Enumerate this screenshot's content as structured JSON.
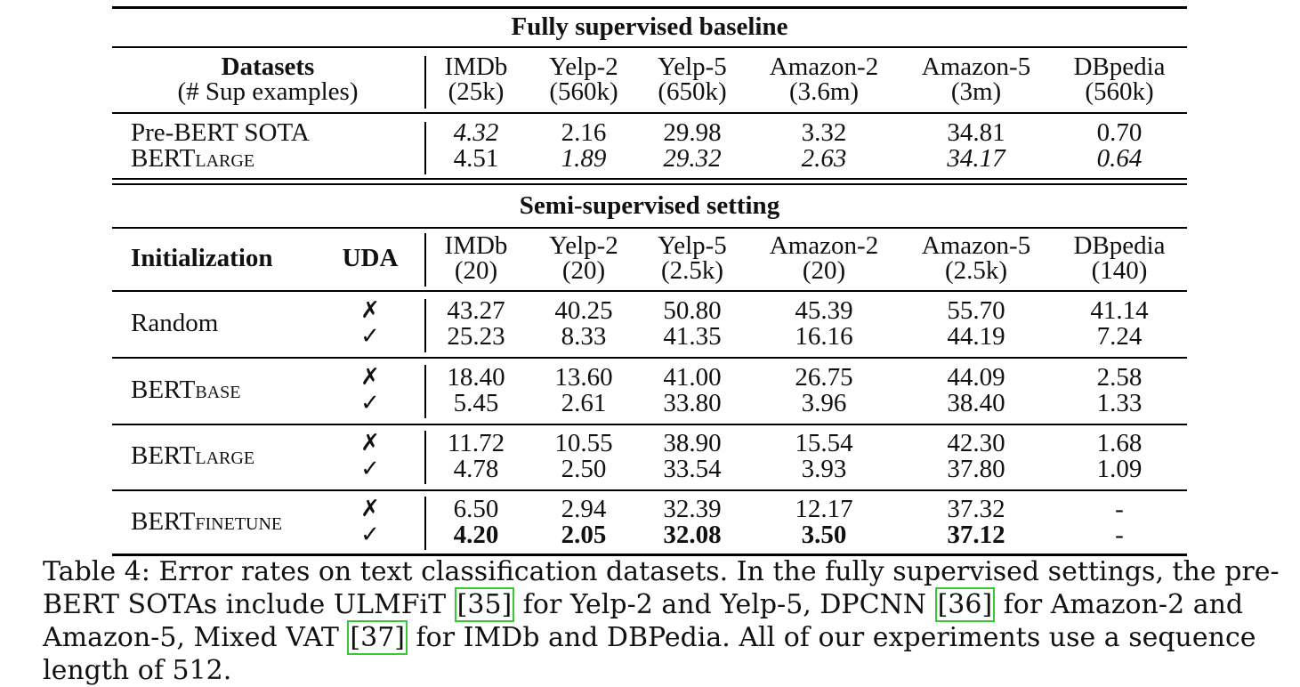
{
  "table": {
    "section1_title": "Fully supervised baseline",
    "datasets_label": "Datasets",
    "sup_examples_label": "(# Sup examples)",
    "full_columns": [
      {
        "name": "IMDb",
        "count": "(25k)"
      },
      {
        "name": "Yelp-2",
        "count": "(560k)"
      },
      {
        "name": "Yelp-5",
        "count": "(650k)"
      },
      {
        "name": "Amazon-2",
        "count": "(3.6m)"
      },
      {
        "name": "Amazon-5",
        "count": "(3m)"
      },
      {
        "name": "DBpedia",
        "count": "(560k)"
      }
    ],
    "full_rows": [
      {
        "label": "Pre-BERT SOTA",
        "sub": "",
        "values": [
          "4.32",
          "2.16",
          "29.98",
          "3.32",
          "34.81",
          "0.70"
        ],
        "italic": [
          true,
          false,
          false,
          false,
          false,
          false
        ]
      },
      {
        "label": "BERT",
        "sub": "LARGE",
        "values": [
          "4.51",
          "1.89",
          "29.32",
          "2.63",
          "34.17",
          "0.64"
        ],
        "italic": [
          false,
          true,
          true,
          true,
          true,
          true
        ]
      }
    ],
    "section2_title": "Semi-supervised setting",
    "init_label": "Initialization",
    "uda_label": "UDA",
    "semi_columns": [
      {
        "name": "IMDb",
        "count": "(20)"
      },
      {
        "name": "Yelp-2",
        "count": "(20)"
      },
      {
        "name": "Yelp-5",
        "count": "(2.5k)"
      },
      {
        "name": "Amazon-2",
        "count": "(20)"
      },
      {
        "name": "Amazon-5",
        "count": "(2.5k)"
      },
      {
        "name": "DBpedia",
        "count": "(140)"
      }
    ],
    "cross_mark": "✗",
    "check_mark": "✓",
    "semi_groups": [
      {
        "label": "Random",
        "sub": "",
        "no_uda": [
          "43.27",
          "40.25",
          "50.80",
          "45.39",
          "55.70",
          "41.14"
        ],
        "uda": [
          "25.23",
          "8.33",
          "41.35",
          "16.16",
          "44.19",
          "7.24"
        ],
        "uda_bold": false
      },
      {
        "label": "BERT",
        "sub": "BASE",
        "no_uda": [
          "18.40",
          "13.60",
          "41.00",
          "26.75",
          "44.09",
          "2.58"
        ],
        "uda": [
          "5.45",
          "2.61",
          "33.80",
          "3.96",
          "38.40",
          "1.33"
        ],
        "uda_bold": false
      },
      {
        "label": "BERT",
        "sub": "LARGE",
        "no_uda": [
          "11.72",
          "10.55",
          "38.90",
          "15.54",
          "42.30",
          "1.68"
        ],
        "uda": [
          "4.78",
          "2.50",
          "33.54",
          "3.93",
          "37.80",
          "1.09"
        ],
        "uda_bold": false
      },
      {
        "label": "BERT",
        "sub": "FINETUNE",
        "no_uda": [
          "6.50",
          "2.94",
          "32.39",
          "12.17",
          "37.32",
          "-"
        ],
        "uda": [
          "4.20",
          "2.05",
          "32.08",
          "3.50",
          "37.12",
          "-"
        ],
        "uda_bold": true
      }
    ]
  },
  "caption": {
    "part1": "Table 4: Error rates on text classification datasets. In the fully supervised settings, the pre-BERT SOTAs include ULMFiT ",
    "ref1": "[35]",
    "part2": " for Yelp-2 and Yelp-5, DPCNN ",
    "ref2": "[36]",
    "part3": " for Amazon-2 and Amazon-5, Mixed VAT ",
    "ref3": "[37]",
    "part4": " for IMDb and DBPedia. All of our experiments use a sequence length of 512.",
    "link_border_color": "#37c837"
  }
}
